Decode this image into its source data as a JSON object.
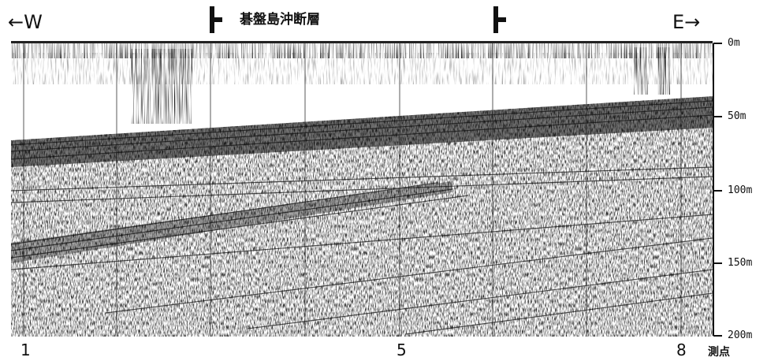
{
  "header": {
    "west_label": "←W",
    "east_label": "E→",
    "fault_name": "碁盤島沖断層"
  },
  "depth_axis": {
    "ticks": [
      "0m",
      "50m",
      "100m",
      "150m",
      "200m"
    ],
    "values": [
      0,
      50,
      100,
      150,
      200
    ]
  },
  "stations": {
    "labels": [
      "1",
      "5",
      "8"
    ],
    "unit_label": "測点"
  },
  "colors": {
    "ink": "#111111",
    "paper": "#ffffff"
  }
}
